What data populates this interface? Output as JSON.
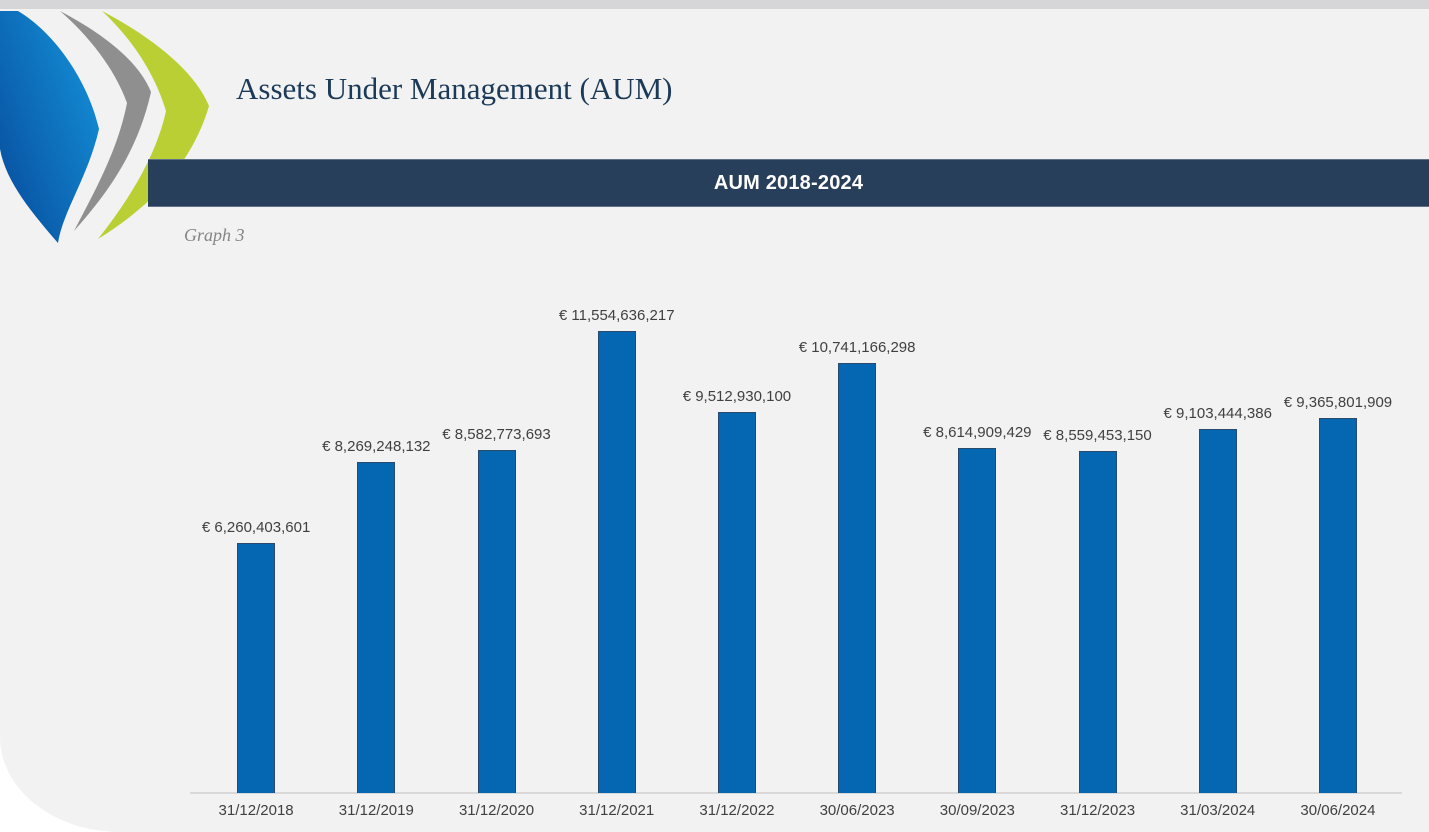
{
  "header": {
    "title": "Assets Under Management (AUM)",
    "banner_title": "AUM 2018-2024",
    "graph_caption": "Graph 3"
  },
  "logo": {
    "name": "triple-chevron-logo",
    "chevrons": [
      "blue",
      "gray",
      "green"
    ]
  },
  "colors": {
    "page_bg": "#ffffff",
    "top_strip": "#d6d6d8",
    "panel_bg": "#f2f2f2",
    "banner_bg": "#283f5b",
    "banner_text": "#ffffff",
    "title_text": "#1c3a57",
    "caption_text": "#858585",
    "label_text": "#404040",
    "axis_line": "#d9d9d9",
    "bar_fill": "#0566b1",
    "bar_border": "#2a4a6b",
    "logo_blue_light": "#1596dd",
    "logo_blue_dark": "#084f9f",
    "logo_gray": "#8f8f8f",
    "logo_green": "#b9cf33"
  },
  "chart_data": {
    "type": "bar",
    "title": "AUM 2018-2024",
    "currency": "EUR",
    "categories": [
      "31/12/2018",
      "31/12/2019",
      "31/12/2020",
      "31/12/2021",
      "31/12/2022",
      "30/06/2023",
      "30/09/2023",
      "31/12/2023",
      "31/03/2024",
      "30/06/2024"
    ],
    "values": [
      6260403601,
      8269248132,
      8582773693,
      11554636217,
      9512930100,
      10741166298,
      8614909429,
      8559453150,
      9103444386,
      9365801909
    ],
    "data_labels": [
      "€ 6,260,403,601",
      "€ 8,269,248,132",
      "€ 8,582,773,693",
      "€ 11,554,636,217",
      "€ 9,512,930,100",
      "€ 10,741,166,298",
      "€ 8,614,909,429",
      "€ 8,559,453,150",
      "€ 9,103,444,386",
      "€ 9,365,801,909"
    ],
    "ylim": [
      0,
      12000000000
    ],
    "xlabel": "",
    "ylabel": "",
    "grid": false,
    "legend": "none",
    "data_labels_visible": true
  }
}
